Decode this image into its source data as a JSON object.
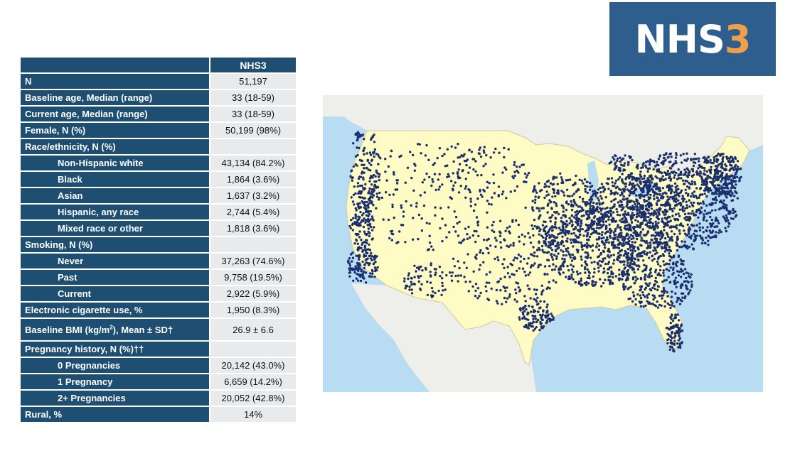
{
  "logo": {
    "text": "NHS",
    "number": "3",
    "bg_color": "#2e5e8e",
    "number_color": "#f0a048"
  },
  "table": {
    "column_header": "NHS3",
    "rows": [
      {
        "label": "N",
        "value": "51,197",
        "indent": false
      },
      {
        "label": "Baseline age, Median (range)",
        "value": "33 (18-59)",
        "indent": false
      },
      {
        "label": "Current age, Median (range)",
        "value": "33 (18-59)",
        "indent": false
      },
      {
        "label": "Female, N (%)",
        "value": "50,199 (98%)",
        "indent": false
      },
      {
        "label": "Race/ethnicity, N (%)",
        "value": "",
        "indent": false
      },
      {
        "label": "Non-Hispanic white",
        "value": "43,134 (84.2%)",
        "indent": true
      },
      {
        "label": "Black",
        "value": "1,864 (3.6%)",
        "indent": true
      },
      {
        "label": "Asian",
        "value": "1,637 (3.2%)",
        "indent": true
      },
      {
        "label": "Hispanic, any race",
        "value": "2,744 (5.4%)",
        "indent": true
      },
      {
        "label": "Mixed race or other",
        "value": "1,818 (3.6%)",
        "indent": true
      },
      {
        "label": "Smoking, N (%)",
        "value": "",
        "indent": false
      },
      {
        "label": "Never",
        "value": "37,263 (74.6%)",
        "indent": true
      },
      {
        "label": "Past",
        "value": "9,758 (19.5%)",
        "indent": true
      },
      {
        "label": "Current",
        "value": "2,922 (5.9%)",
        "indent": true
      },
      {
        "label": "Electronic cigarette use, %",
        "value": "1,950 (8.3%)",
        "indent": false
      },
      {
        "label_pre": "Baseline BMI (kg/m",
        "label_sup": "2",
        "label_post": "), Mean ± SD†",
        "value": "26.9 ± 6.6",
        "indent": false,
        "tall": true
      },
      {
        "label": "Pregnancy history, N (%)††",
        "value": "",
        "indent": false
      },
      {
        "label": "0 Pregnancies",
        "value": "20,142 (43.0%)",
        "indent": true
      },
      {
        "label": "1 Pregnancy",
        "value": "6,659 (14.2%)",
        "indent": true
      },
      {
        "label": "2+ Pregnancies",
        "value": "20,052 (42.8%)",
        "indent": true
      },
      {
        "label": "Rural, %",
        "value": "14%",
        "indent": false
      }
    ]
  },
  "map": {
    "colors": {
      "water": "#b8ddf2",
      "land_us": "#fffbc4",
      "land_other": "#eeeeea",
      "dots": "#1b2f6e"
    }
  }
}
